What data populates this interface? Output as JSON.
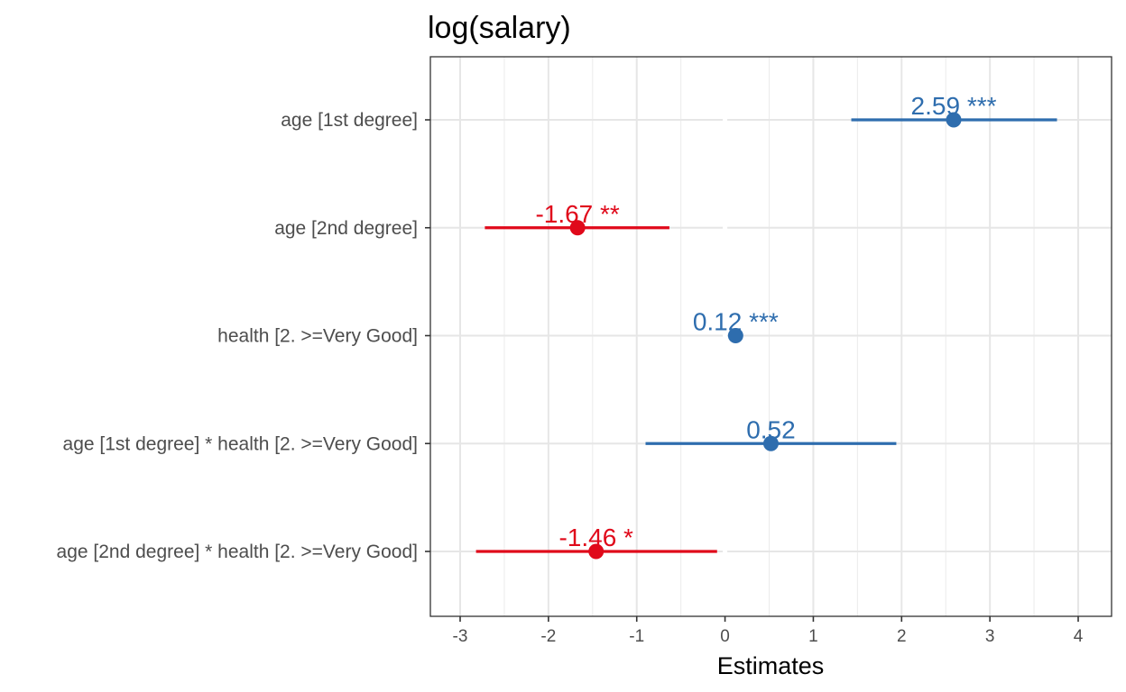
{
  "chart_data": {
    "type": "forest",
    "title": "log(salary)",
    "xlabel": "Estimates",
    "ylabel": "",
    "xlim": [
      -3.35,
      4.3
    ],
    "xticks": [
      -3,
      -2,
      -1,
      0,
      1,
      2,
      3,
      4
    ],
    "xtick_labels": [
      "-3",
      "-2",
      "-1",
      "0",
      "1",
      "2",
      "3",
      "4"
    ],
    "grid": true,
    "colors": {
      "positive": "#2e6dae",
      "negative": "#e0091a"
    },
    "terms": [
      {
        "label": "age [1st degree]",
        "estimate": 2.59,
        "ci_low": 1.43,
        "ci_high": 3.76,
        "text": "2.59 ***",
        "direction": "positive"
      },
      {
        "label": "age [2nd degree]",
        "estimate": -1.67,
        "ci_low": -2.72,
        "ci_high": -0.63,
        "text": "-1.67 **",
        "direction": "negative"
      },
      {
        "label": "health [2. >=Very Good]",
        "estimate": 0.12,
        "ci_low": 0.09,
        "ci_high": 0.15,
        "text": "0.12 ***",
        "direction": "positive"
      },
      {
        "label": "age [1st degree] * health [2. >=Very Good]",
        "estimate": 0.52,
        "ci_low": -0.9,
        "ci_high": 1.94,
        "text": "0.52",
        "direction": "positive"
      },
      {
        "label": "age [2nd degree] * health [2. >=Very Good]",
        "estimate": -1.46,
        "ci_low": -2.82,
        "ci_high": -0.09,
        "text": "-1.46 *",
        "direction": "negative"
      }
    ]
  }
}
